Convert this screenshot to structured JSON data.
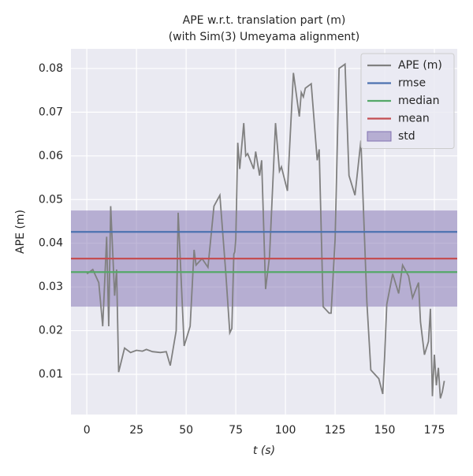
{
  "chart_data": {
    "type": "line",
    "title": [
      "APE w.r.t. translation part (m)",
      "(with Sim(3) Umeyama alignment)"
    ],
    "xlabel": "t (s)",
    "ylabel": "APE (m)",
    "x": [
      0,
      3,
      6,
      8,
      10,
      11,
      12,
      14,
      15,
      16,
      19,
      22,
      25,
      28,
      30,
      33,
      37,
      40,
      42,
      45,
      46,
      49,
      52,
      54,
      55,
      58,
      61,
      64,
      67,
      70,
      72,
      73,
      74,
      74.5,
      75,
      76,
      77,
      79,
      80,
      81,
      84,
      85,
      87,
      88,
      90,
      92,
      95,
      97,
      98,
      101,
      104,
      107,
      108,
      109,
      110,
      113,
      116,
      117,
      119,
      122,
      123,
      125,
      127,
      130,
      132,
      135,
      138,
      141,
      143,
      147,
      149,
      150,
      151,
      154,
      157,
      159,
      162,
      164,
      167,
      168,
      170,
      172,
      173,
      174,
      175,
      176,
      177,
      178,
      179,
      180
    ],
    "series": [
      {
        "name": "APE (m)",
        "color": "#808080",
        "values": [
          0.033,
          0.034,
          0.031,
          0.021,
          0.0415,
          0.021,
          0.0485,
          0.028,
          0.034,
          0.0105,
          0.016,
          0.015,
          0.0155,
          0.0153,
          0.0157,
          0.0152,
          0.015,
          0.0152,
          0.012,
          0.02,
          0.047,
          0.0165,
          0.021,
          0.0385,
          0.035,
          0.0365,
          0.0345,
          0.0485,
          0.051,
          0.033,
          0.0195,
          0.0205,
          0.0375,
          0.038,
          0.041,
          0.063,
          0.057,
          0.0675,
          0.06,
          0.0605,
          0.057,
          0.061,
          0.0555,
          0.059,
          0.0295,
          0.037,
          0.0675,
          0.0565,
          0.0575,
          0.052,
          0.079,
          0.069,
          0.0745,
          0.0735,
          0.0755,
          0.0765,
          0.059,
          0.0615,
          0.0255,
          0.024,
          0.024,
          0.041,
          0.08,
          0.081,
          0.0555,
          0.051,
          0.0635,
          0.0265,
          0.011,
          0.009,
          0.0055,
          0.0145,
          0.026,
          0.033,
          0.0285,
          0.035,
          0.0325,
          0.0275,
          0.031,
          0.022,
          0.0145,
          0.0175,
          0.025,
          0.005,
          0.0145,
          0.0075,
          0.0115,
          0.0045,
          0.006,
          0.0085
        ]
      }
    ],
    "hlines": [
      {
        "name": "rmse",
        "color": "#4c72b0",
        "value": 0.0426
      },
      {
        "name": "median",
        "color": "#55a868",
        "value": 0.0334
      },
      {
        "name": "mean",
        "color": "#c44e52",
        "value": 0.0365
      }
    ],
    "band": {
      "name": "std",
      "color": "#8172b2",
      "value": 0.011
    },
    "xlim": [
      -8,
      186.5
    ],
    "ylim": [
      0.0008,
      0.0845
    ],
    "xticks": [
      0,
      25,
      50,
      75,
      100,
      125,
      150,
      175
    ],
    "yticks": [
      0.01,
      0.02,
      0.03,
      0.04,
      0.05,
      0.06,
      0.07,
      0.08
    ],
    "grid": true,
    "legend": "upper right"
  }
}
